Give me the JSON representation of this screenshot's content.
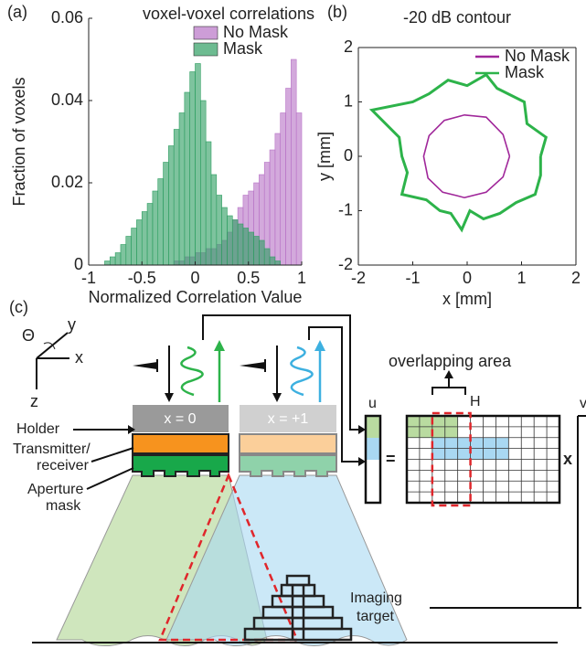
{
  "chart_data": [
    {
      "type": "histogram",
      "panel_label": "(a)",
      "title": "voxel-voxel correlations",
      "xlabel": "Normalized Correlation Value",
      "ylabel": "Fraction of voxels",
      "bins": [
        -1,
        -0.95,
        -0.9,
        -0.85,
        -0.8,
        -0.75,
        -0.7,
        -0.65,
        -0.6,
        -0.55,
        -0.5,
        -0.45,
        -0.4,
        -0.35,
        -0.3,
        -0.25,
        -0.2,
        -0.15,
        -0.1,
        -0.05,
        0,
        0.05,
        0.1,
        0.15,
        0.2,
        0.25,
        0.3,
        0.35,
        0.4,
        0.45,
        0.5,
        0.55,
        0.6,
        0.65,
        0.7,
        0.75,
        0.8,
        0.85,
        0.9,
        0.95,
        1
      ],
      "series": [
        {
          "name": "No Mask",
          "color": "#b874c6",
          "values": [
            0,
            0,
            0,
            0,
            0,
            0,
            0,
            0,
            0,
            0,
            0,
            0,
            0,
            0,
            0,
            0,
            0.001,
            0.001,
            0.002,
            0.002,
            0.003,
            0.003,
            0.004,
            0.004,
            0.005,
            0.006,
            0.008,
            0.011,
            0.014,
            0.017,
            0.018,
            0.02,
            0.022,
            0.025,
            0.028,
            0.032,
            0.037,
            0.043,
            0.05,
            0.037
          ]
        },
        {
          "name": "Mask",
          "color": "#2f9e62",
          "values": [
            0,
            0,
            0,
            0.001,
            0.002,
            0.003,
            0.005,
            0.007,
            0.009,
            0.011,
            0.013,
            0.015,
            0.018,
            0.021,
            0.025,
            0.029,
            0.033,
            0.037,
            0.042,
            0.047,
            0.049,
            0.04,
            0.03,
            0.022,
            0.017,
            0.014,
            0.012,
            0.011,
            0.01,
            0.009,
            0.008,
            0.007,
            0.006,
            0.004,
            0.002,
            0.001,
            0,
            0,
            0,
            0
          ]
        }
      ],
      "xlim": [
        -1,
        1
      ],
      "ylim": [
        0,
        0.06
      ],
      "xticks": [
        -1,
        -0.5,
        0,
        0.5,
        1
      ],
      "yticks": [
        0,
        0.02,
        0.04,
        0.06
      ],
      "legend": "upper right"
    },
    {
      "type": "line",
      "panel_label": "(b)",
      "title": "-20 dB contour",
      "xlabel": "x [mm]",
      "ylabel": "y [mm]",
      "series": [
        {
          "name": "No Mask",
          "color": "#a0279a",
          "x": [
            0.78,
            0.66,
            0.35,
            -0.05,
            -0.42,
            -0.7,
            -0.8,
            -0.72,
            -0.45,
            -0.2,
            -0.05,
            0.35,
            0.66,
            0.78
          ],
          "values": [
            0,
            0.4,
            0.72,
            0.76,
            0.66,
            0.38,
            0,
            -0.4,
            -0.66,
            -0.72,
            -0.76,
            -0.66,
            -0.38,
            0
          ]
        },
        {
          "name": "Mask",
          "color": "#2db34a",
          "x": [
            1.35,
            1.45,
            1.1,
            1.05,
            0.55,
            0.35,
            0,
            -0.35,
            -0.7,
            -1,
            -1.75,
            -1.25,
            -1.2,
            -1.1,
            -1.2,
            -0.75,
            -0.5,
            -0.3,
            -0.1,
            0.05,
            0.3,
            0.6,
            0.9,
            1.25,
            1.35,
            1.35
          ],
          "values": [
            0,
            0.35,
            0.6,
            1,
            1.25,
            1.5,
            1.3,
            1.4,
            1.15,
            1,
            0.85,
            0.35,
            0,
            -0.3,
            -0.7,
            -0.8,
            -1,
            -1.05,
            -1.35,
            -1,
            -1.15,
            -1.05,
            -0.85,
            -0.7,
            -0.35,
            0
          ]
        }
      ],
      "xlim": [
        -2,
        2
      ],
      "ylim": [
        -2,
        2
      ],
      "xticks": [
        -2,
        -1,
        0,
        1,
        2
      ],
      "yticks": [
        -2,
        -1,
        0,
        1,
        2
      ],
      "legend": "upper right"
    }
  ],
  "diagram": {
    "panel_label": "(c)",
    "axes": {
      "theta": "Θ",
      "y": "y",
      "x": "x",
      "z": "z"
    },
    "holder": "Holder",
    "positions": [
      "x = 0",
      "x = +1"
    ],
    "transmitter": [
      "Transmitter/",
      "receiver"
    ],
    "mask": [
      "Aperture",
      "mask"
    ],
    "overlap": "overlapping area",
    "h": "H",
    "u": "u",
    "equals": "=",
    "times": "x",
    "v": "v",
    "target": [
      "Imaging",
      "target"
    ]
  }
}
